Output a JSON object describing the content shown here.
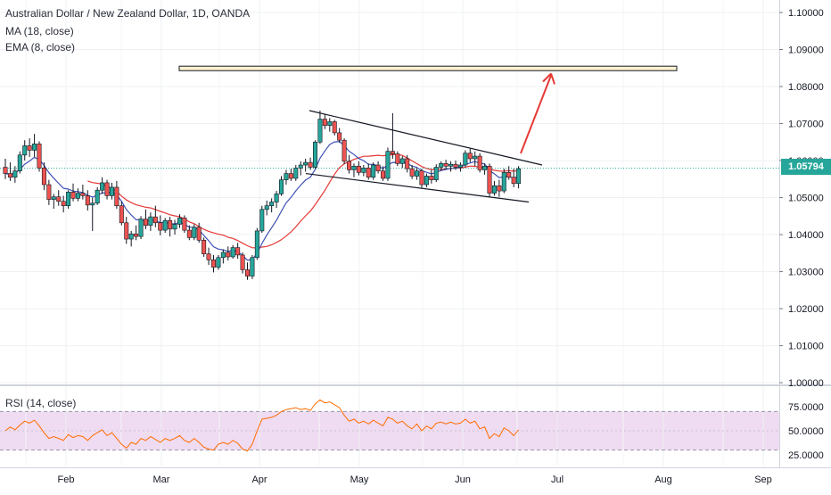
{
  "legend": {
    "symbol": "Australian Dollar / New Zealand Dollar, 1D, OANDA",
    "ma": "MA (18, close)",
    "ema": "EMA (8, close)",
    "rsi": "RSI (14, close)"
  },
  "last_price_label": "1.05794",
  "colors": {
    "up": "#26a69a",
    "down": "#ef5350",
    "ma": "#e53935",
    "ema": "#3f51b5",
    "rsi": "#ff6d00",
    "rsi_band": "#e1bee7",
    "grid": "#eef0f3",
    "last_price": "#26a69a",
    "target_zone": "#fff3cf",
    "projection_arrow": "#e53935",
    "trendline": "#131722"
  },
  "chart_data": [
    {
      "type": "candlestick",
      "title": "Australian Dollar / New Zealand Dollar, 1D, OANDA",
      "x_ticks": [
        "Feb",
        "Mar",
        "Apr",
        "May",
        "Jun",
        "Jul",
        "Aug",
        "Sep"
      ],
      "y_ticks": [
        "1.10000",
        "1.09000",
        "1.08000",
        "1.07000",
        "1.06000",
        "1.05000",
        "1.04000",
        "1.03000",
        "1.02000",
        "1.01000",
        "1.00000"
      ],
      "ylim": [
        1.0,
        1.1
      ],
      "last_price": 1.05794,
      "grid": true,
      "candles": [
        [
          1.0582,
          1.0605,
          1.055,
          1.0565
        ],
        [
          1.0565,
          1.0595,
          1.0545,
          1.0555
        ],
        [
          1.0555,
          1.0585,
          1.054,
          1.0572
        ],
        [
          1.0572,
          1.0625,
          1.0565,
          1.0615
        ],
        [
          1.0615,
          1.0655,
          1.06,
          1.064
        ],
        [
          1.064,
          1.066,
          1.061,
          1.0628
        ],
        [
          1.0628,
          1.0672,
          1.061,
          1.0645
        ],
        [
          1.0645,
          1.0652,
          1.057,
          1.058
        ],
        [
          1.058,
          1.0595,
          1.052,
          1.0535
        ],
        [
          1.0535,
          1.0548,
          1.048,
          1.0495
        ],
        [
          1.0495,
          1.051,
          1.047,
          1.0502
        ],
        [
          1.0502,
          1.052,
          1.0478,
          1.049
        ],
        [
          1.049,
          1.0505,
          1.046,
          1.0478
        ],
        [
          1.0478,
          1.052,
          1.047,
          1.0515
        ],
        [
          1.0515,
          1.0538,
          1.049,
          1.0498
        ],
        [
          1.0498,
          1.0525,
          1.049,
          1.0512
        ],
        [
          1.0512,
          1.0535,
          1.0495,
          1.0505
        ],
        [
          1.0505,
          1.052,
          1.0465,
          1.048
        ],
        [
          1.048,
          1.05,
          1.041,
          1.0485
        ],
        [
          1.0485,
          1.0528,
          1.048,
          1.052
        ],
        [
          1.052,
          1.0555,
          1.051,
          1.054
        ],
        [
          1.054,
          1.0548,
          1.0495,
          1.0505
        ],
        [
          1.0505,
          1.054,
          1.0495,
          1.0528
        ],
        [
          1.0528,
          1.0545,
          1.047,
          1.0478
        ],
        [
          1.0478,
          1.049,
          1.0425,
          1.0432
        ],
        [
          1.0432,
          1.0448,
          1.0375,
          1.0388
        ],
        [
          1.0388,
          1.041,
          1.0368,
          1.0402
        ],
        [
          1.0402,
          1.0425,
          1.0385,
          1.0395
        ],
        [
          1.0395,
          1.045,
          1.0388,
          1.0442
        ],
        [
          1.0442,
          1.0468,
          1.0415,
          1.0425
        ],
        [
          1.0425,
          1.046,
          1.041,
          1.0448
        ],
        [
          1.0448,
          1.0478,
          1.042,
          1.0432
        ],
        [
          1.0432,
          1.0452,
          1.0398,
          1.0412
        ],
        [
          1.0412,
          1.0445,
          1.0405,
          1.0438
        ],
        [
          1.0438,
          1.0448,
          1.0395,
          1.0415
        ],
        [
          1.0415,
          1.044,
          1.04,
          1.0428
        ],
        [
          1.0428,
          1.0455,
          1.0418,
          1.0445
        ],
        [
          1.0445,
          1.0452,
          1.0405,
          1.0412
        ],
        [
          1.0412,
          1.0425,
          1.0385,
          1.0392
        ],
        [
          1.0392,
          1.0428,
          1.0385,
          1.042
        ],
        [
          1.042,
          1.0432,
          1.0378,
          1.0385
        ],
        [
          1.0385,
          1.0392,
          1.034,
          1.0348
        ],
        [
          1.0348,
          1.0365,
          1.0318,
          1.0332
        ],
        [
          1.0332,
          1.0345,
          1.0298,
          1.0312
        ],
        [
          1.0312,
          1.0345,
          1.0305,
          1.0338
        ],
        [
          1.0338,
          1.036,
          1.0322,
          1.0352
        ],
        [
          1.0352,
          1.0368,
          1.033,
          1.034
        ],
        [
          1.034,
          1.0372,
          1.0335,
          1.0365
        ],
        [
          1.0365,
          1.0378,
          1.0335,
          1.0345
        ],
        [
          1.0345,
          1.0352,
          1.0295,
          1.0305
        ],
        [
          1.0305,
          1.0325,
          1.0278,
          1.0288
        ],
        [
          1.0288,
          1.0345,
          1.028,
          1.0338
        ],
        [
          1.0338,
          1.0418,
          1.0332,
          1.041
        ],
        [
          1.041,
          1.0478,
          1.0405,
          1.0468
        ],
        [
          1.0468,
          1.0492,
          1.0452,
          1.0478
        ],
        [
          1.0478,
          1.0498,
          1.046,
          1.0488
        ],
        [
          1.0488,
          1.0518,
          1.0472,
          1.051
        ],
        [
          1.051,
          1.0558,
          1.0505,
          1.0548
        ],
        [
          1.0548,
          1.0575,
          1.0535,
          1.0565
        ],
        [
          1.0565,
          1.0578,
          1.0545,
          1.0552
        ],
        [
          1.0552,
          1.0588,
          1.0545,
          1.058
        ],
        [
          1.058,
          1.0598,
          1.056,
          1.0588
        ],
        [
          1.0588,
          1.0605,
          1.057,
          1.0595
        ],
        [
          1.0595,
          1.0608,
          1.0575,
          1.0582
        ],
        [
          1.0582,
          1.0655,
          1.0578,
          1.065
        ],
        [
          1.065,
          1.0735,
          1.0645,
          1.0712
        ],
        [
          1.0712,
          1.0725,
          1.0685,
          1.0695
        ],
        [
          1.0695,
          1.0715,
          1.0678,
          1.0705
        ],
        [
          1.0705,
          1.071,
          1.0668,
          1.0675
        ],
        [
          1.0675,
          1.0688,
          1.0648,
          1.0655
        ],
        [
          1.0655,
          1.066,
          1.059,
          1.0598
        ],
        [
          1.0598,
          1.0615,
          1.0565,
          1.0575
        ],
        [
          1.0575,
          1.0592,
          1.0555,
          1.0585
        ],
        [
          1.0585,
          1.0598,
          1.056,
          1.0568
        ],
        [
          1.0568,
          1.0588,
          1.0558,
          1.058
        ],
        [
          1.058,
          1.0592,
          1.0548,
          1.0555
        ],
        [
          1.0555,
          1.0595,
          1.0548,
          1.0588
        ],
        [
          1.0588,
          1.0598,
          1.0565,
          1.0572
        ],
        [
          1.0572,
          1.0585,
          1.0545,
          1.0552
        ],
        [
          1.0552,
          1.0635,
          1.0545,
          1.0625
        ],
        [
          1.0625,
          1.0728,
          1.0605,
          1.0618
        ],
        [
          1.0618,
          1.0625,
          1.0585,
          1.0592
        ],
        [
          1.0592,
          1.0612,
          1.058,
          1.0605
        ],
        [
          1.0605,
          1.0615,
          1.0568,
          1.0578
        ],
        [
          1.0578,
          1.0588,
          1.055,
          1.0558
        ],
        [
          1.0558,
          1.058,
          1.0548,
          1.0572
        ],
        [
          1.0572,
          1.0578,
          1.0525,
          1.0535
        ],
        [
          1.0535,
          1.0565,
          1.0528,
          1.0558
        ],
        [
          1.0558,
          1.0575,
          1.0538,
          1.0548
        ],
        [
          1.0548,
          1.059,
          1.0542,
          1.0582
        ],
        [
          1.0582,
          1.0598,
          1.0572,
          1.0592
        ],
        [
          1.0592,
          1.0602,
          1.0575,
          1.0585
        ],
        [
          1.0585,
          1.0598,
          1.057,
          1.059
        ],
        [
          1.059,
          1.06,
          1.0575,
          1.0582
        ],
        [
          1.0582,
          1.0595,
          1.057,
          1.0588
        ],
        [
          1.0588,
          1.0628,
          1.0582,
          1.062
        ],
        [
          1.062,
          1.0632,
          1.0595,
          1.0605
        ],
        [
          1.0605,
          1.0625,
          1.0585,
          1.0612
        ],
        [
          1.0612,
          1.062,
          1.0568,
          1.0575
        ],
        [
          1.0575,
          1.0592,
          1.0562,
          1.0585
        ],
        [
          1.0585,
          1.0592,
          1.05,
          1.0512
        ],
        [
          1.0512,
          1.0545,
          1.0505,
          1.0532
        ],
        [
          1.0532,
          1.0548,
          1.0502,
          1.0518
        ],
        [
          1.0518,
          1.0578,
          1.0512,
          1.0568
        ],
        [
          1.0568,
          1.0585,
          1.0548,
          1.0555
        ],
        [
          1.0555,
          1.0578,
          1.0528,
          1.0538
        ],
        [
          1.0538,
          1.0585,
          1.0525,
          1.0578
        ]
      ]
    },
    {
      "type": "line",
      "title": "RSI (14, close)",
      "y_ticks": [
        "75.0000",
        "50.0000",
        "25.0000"
      ],
      "ylim": [
        25,
        85
      ],
      "bands": [
        30,
        70
      ],
      "values": [
        50,
        54,
        51,
        56,
        60,
        58,
        61,
        55,
        48,
        42,
        44,
        42,
        40,
        46,
        43,
        45,
        44,
        40,
        45,
        48,
        51,
        45,
        48,
        42,
        36,
        32,
        38,
        36,
        42,
        40,
        44,
        41,
        38,
        42,
        40,
        42,
        45,
        40,
        38,
        42,
        38,
        33,
        31,
        30,
        36,
        38,
        36,
        40,
        37,
        31,
        29,
        36,
        50,
        62,
        63,
        64,
        66,
        70,
        72,
        73,
        74,
        72,
        73,
        71,
        78,
        82,
        79,
        80,
        77,
        74,
        66,
        60,
        62,
        58,
        60,
        57,
        61,
        58,
        55,
        64,
        62,
        58,
        60,
        55,
        52,
        57,
        50,
        55,
        52,
        58,
        59,
        57,
        59,
        57,
        58,
        62,
        58,
        60,
        52,
        54,
        42,
        47,
        44,
        53,
        50,
        45,
        51
      ]
    }
  ],
  "annotations": {
    "target_zone": {
      "price_top": 1.0855,
      "price_bottom": 1.0845
    },
    "upper_trendline": {
      "from_price": 1.0735,
      "to_price": 1.0588
    },
    "lower_trendline": {
      "from_price": 1.0565,
      "to_price": 1.0488
    },
    "projection_arrow": {
      "to_price": 1.0835
    }
  }
}
